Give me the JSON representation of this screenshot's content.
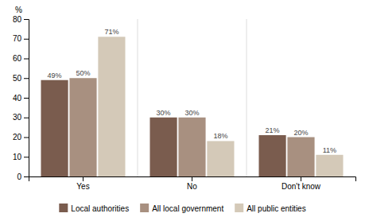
{
  "chart_data": {
    "type": "bar",
    "categories": [
      "Yes",
      "No",
      "Don't know"
    ],
    "series": [
      {
        "name": "Local authorities",
        "color": "#7a5c4e",
        "values": [
          49,
          30,
          21
        ],
        "value_labels": [
          "49%",
          "30%",
          "21%"
        ]
      },
      {
        "name": "All local government",
        "color": "#a89080",
        "values": [
          50,
          30,
          20
        ],
        "value_labels": [
          "50%",
          "30%",
          "20%"
        ]
      },
      {
        "name": "All public entities",
        "color": "#d4c9b8",
        "values": [
          71,
          18,
          11
        ],
        "value_labels": [
          "71%",
          "18%",
          "11%"
        ]
      }
    ],
    "y_label": "%",
    "ylim": [
      0,
      80
    ],
    "yticks": [
      0,
      10,
      20,
      30,
      40,
      50,
      60,
      70,
      80
    ],
    "grid": false,
    "legend": "bottom",
    "data_labels": true
  }
}
